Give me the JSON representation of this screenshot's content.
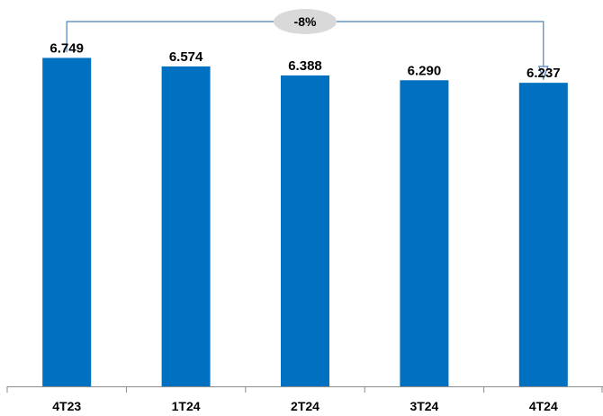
{
  "chart_data": {
    "type": "bar",
    "categories": [
      "4T23",
      "1T24",
      "2T24",
      "3T24",
      "4T24"
    ],
    "values": [
      6749,
      6574,
      6388,
      6290,
      6237
    ],
    "value_labels": [
      "6.749",
      "6.574",
      "6.388",
      "6.290",
      "6.237"
    ],
    "title": "",
    "xlabel": "",
    "ylabel": "",
    "ylim": [
      0,
      7200
    ],
    "grid": false,
    "legend": "none",
    "bar_color": "#0070c0",
    "annotation": {
      "label": "-8%",
      "from_category": "4T23",
      "to_category": "4T24",
      "line_color": "#4f81bd",
      "pill_color": "#d9d9d9"
    }
  }
}
